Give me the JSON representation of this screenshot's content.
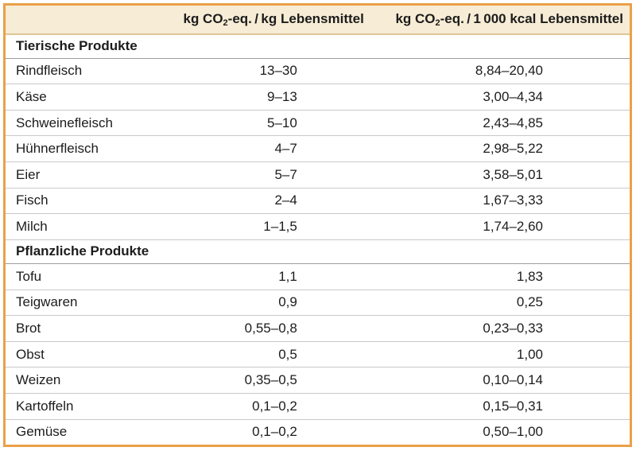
{
  "table": {
    "headers": {
      "col1": "",
      "col2": {
        "prefix": "kg CO",
        "sub": "2",
        "suffix": "-eq. / kg Lebensmittel"
      },
      "col3": {
        "prefix": "kg CO",
        "sub": "2",
        "suffix": "-eq. / 1 000 kcal Lebensmittel"
      }
    },
    "sections": [
      {
        "title": "Tierische Produkte",
        "rows": [
          {
            "label": "Rindfleisch",
            "per_kg": "13–30",
            "per_1000_kcal": "8,84–20,40"
          },
          {
            "label": "Käse",
            "per_kg": "9–13",
            "per_1000_kcal": "3,00–4,34"
          },
          {
            "label": "Schweinefleisch",
            "per_kg": "5–10",
            "per_1000_kcal": "2,43–4,85"
          },
          {
            "label": "Hühnerfleisch",
            "per_kg": "4–7",
            "per_1000_kcal": "2,98–5,22"
          },
          {
            "label": "Eier",
            "per_kg": "5–7",
            "per_1000_kcal": "3,58–5,01"
          },
          {
            "label": "Fisch",
            "per_kg": "2–4",
            "per_1000_kcal": "1,67–3,33"
          },
          {
            "label": "Milch",
            "per_kg": "1–1,5",
            "per_1000_kcal": "1,74–2,60"
          }
        ]
      },
      {
        "title": "Pflanzliche Produkte",
        "rows": [
          {
            "label": "Tofu",
            "per_kg": "1,1",
            "per_1000_kcal": "1,83"
          },
          {
            "label": "Teigwaren",
            "per_kg": "0,9",
            "per_1000_kcal": "0,25"
          },
          {
            "label": "Brot",
            "per_kg": "0,55–0,8",
            "per_1000_kcal": "0,23–0,33"
          },
          {
            "label": "Obst",
            "per_kg": "0,5",
            "per_1000_kcal": "1,00"
          },
          {
            "label": "Weizen",
            "per_kg": "0,35–0,5",
            "per_1000_kcal": "0,10–0,14"
          },
          {
            "label": "Kartoffeln",
            "per_kg": "0,1–0,2",
            "per_1000_kcal": "0,15–0,31"
          },
          {
            "label": "Gemüse",
            "per_kg": "0,1–0,2",
            "per_1000_kcal": "0,50–1,00"
          }
        ]
      }
    ]
  },
  "colors": {
    "frame_border": "#EAA049",
    "header_bg": "#F7ECD5",
    "header_divider": "#DFC693",
    "row_divider": "#C9C9C9",
    "section_divider": "#9E9E9E",
    "text": "#1C1C1C"
  }
}
